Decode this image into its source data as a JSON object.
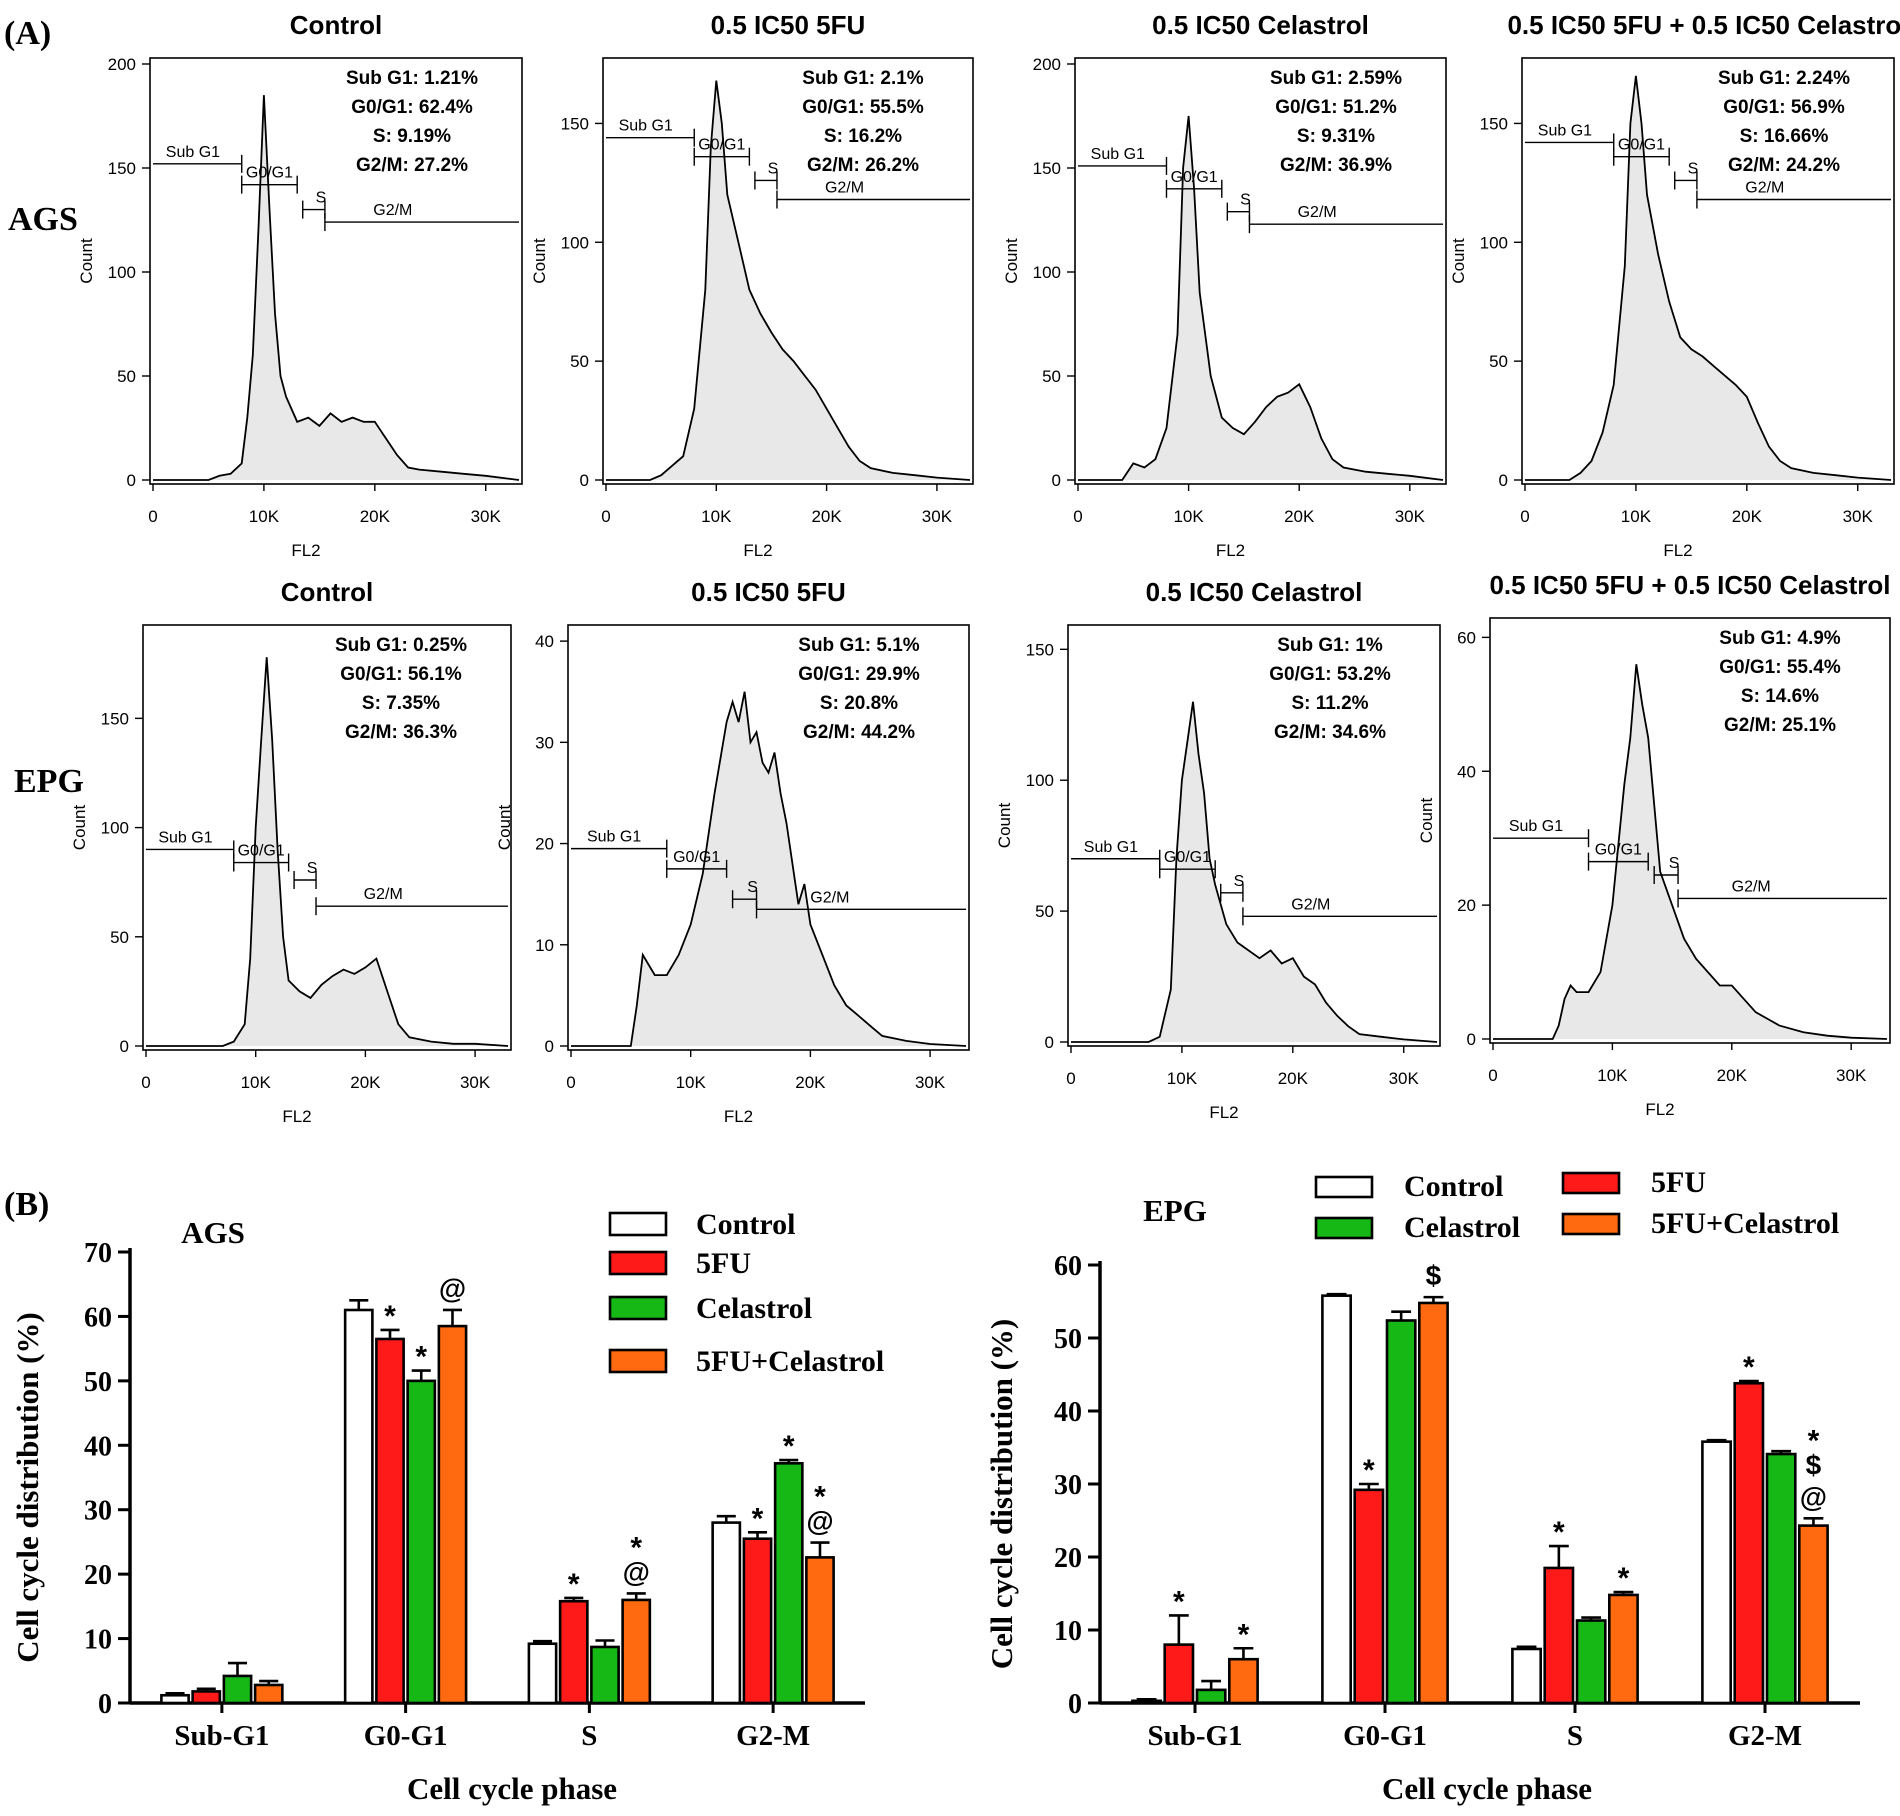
{
  "figure": {
    "panel_a_label": "(A)",
    "panel_b_label": "(B)"
  },
  "histogram_axis": {
    "x_label": "FL2",
    "y_label": "Count",
    "x_ticks": [
      "0",
      "10K",
      "20K",
      "30K"
    ]
  },
  "row_labels": [
    "AGS",
    "EPG"
  ],
  "gate_labels": {
    "sub_g1": "Sub G1",
    "g0g1": "G0/G1",
    "s": "S",
    "g2m": "G2/M"
  },
  "chart_data": [
    {
      "type": "area",
      "id": "ags-control",
      "row": 0,
      "col": 0,
      "title": "Control",
      "stats": [
        "Sub G1: 1.21%",
        "G0/G1: 62.4%",
        "S: 9.19%",
        "G2/M: 27.2%"
      ],
      "ylim": [
        0,
        200
      ],
      "yticks": [
        0,
        50,
        100,
        150,
        200
      ],
      "xlim": [
        0,
        33000
      ],
      "gate_y": [
        152,
        142,
        130,
        124
      ],
      "x": [
        0,
        5000,
        6000,
        7000,
        8000,
        8500,
        9000,
        9500,
        10000,
        10500,
        11000,
        11500,
        12000,
        13000,
        14000,
        15000,
        16000,
        17000,
        18000,
        19000,
        20000,
        21000,
        22000,
        23000,
        24000,
        26000,
        28000,
        30000,
        33000
      ],
      "y": [
        0,
        0,
        2,
        3,
        8,
        30,
        60,
        120,
        185,
        130,
        80,
        50,
        40,
        28,
        30,
        26,
        32,
        28,
        30,
        28,
        28,
        20,
        12,
        6,
        5,
        4,
        3,
        2,
        0
      ]
    },
    {
      "type": "area",
      "id": "ags-5fu",
      "row": 0,
      "col": 1,
      "title": "0.5 IC50 5FU",
      "stats": [
        "Sub G1: 2.1%",
        "G0/G1: 55.5%",
        "S: 16.2%",
        "G2/M: 26.2%"
      ],
      "ylim": [
        0,
        175
      ],
      "yticks": [
        0,
        50,
        100,
        150
      ],
      "xlim": [
        0,
        33000
      ],
      "gate_y": [
        144,
        136,
        126,
        118
      ],
      "x": [
        0,
        4000,
        5000,
        6000,
        7000,
        8000,
        9000,
        9500,
        10000,
        10500,
        11000,
        12000,
        13000,
        14000,
        15000,
        16000,
        17000,
        18000,
        19000,
        20000,
        21000,
        22000,
        23000,
        24000,
        26000,
        28000,
        30000,
        33000
      ],
      "y": [
        0,
        0,
        2,
        6,
        10,
        30,
        80,
        140,
        168,
        150,
        120,
        100,
        80,
        70,
        62,
        55,
        50,
        44,
        38,
        30,
        22,
        14,
        8,
        5,
        3,
        2,
        1,
        0
      ]
    },
    {
      "type": "area",
      "id": "ags-celastrol",
      "row": 0,
      "col": 2,
      "title": "0.5 IC50 Celastrol",
      "stats": [
        "Sub G1: 2.59%",
        "G0/G1: 51.2%",
        "S: 9.31%",
        "G2/M: 36.9%"
      ],
      "ylim": [
        0,
        200
      ],
      "yticks": [
        0,
        50,
        100,
        150,
        200
      ],
      "xlim": [
        0,
        33000
      ],
      "gate_y": [
        151,
        140,
        129,
        123
      ],
      "x": [
        0,
        4000,
        5000,
        6000,
        7000,
        8000,
        9000,
        9500,
        10000,
        10500,
        11000,
        12000,
        13000,
        14000,
        15000,
        16000,
        17000,
        18000,
        19000,
        20000,
        21000,
        22000,
        23000,
        24000,
        26000,
        28000,
        30000,
        33000
      ],
      "y": [
        0,
        0,
        8,
        6,
        10,
        25,
        70,
        150,
        175,
        140,
        90,
        50,
        30,
        25,
        22,
        28,
        35,
        40,
        42,
        46,
        35,
        20,
        10,
        6,
        4,
        3,
        2,
        0
      ]
    },
    {
      "type": "area",
      "id": "ags-combo",
      "row": 0,
      "col": 3,
      "title": "0.5 IC50 5FU + 0.5 IC50 Celastrol",
      "stats": [
        "Sub G1: 2.24%",
        "G0/G1: 56.9%",
        "S: 16.66%",
        "G2/M: 24.2%"
      ],
      "ylim": [
        0,
        175
      ],
      "yticks": [
        0,
        50,
        100,
        150
      ],
      "xlim": [
        0,
        33000
      ],
      "gate_y": [
        142,
        136,
        126,
        118
      ],
      "x": [
        0,
        4000,
        5000,
        6000,
        7000,
        8000,
        9000,
        9500,
        10000,
        10500,
        11000,
        12000,
        13000,
        14000,
        15000,
        16000,
        17000,
        18000,
        19000,
        20000,
        21000,
        22000,
        23000,
        24000,
        26000,
        28000,
        30000,
        33000
      ],
      "y": [
        0,
        0,
        3,
        8,
        20,
        40,
        90,
        150,
        170,
        150,
        120,
        95,
        75,
        60,
        55,
        52,
        48,
        44,
        40,
        35,
        24,
        14,
        8,
        5,
        3,
        2,
        1,
        0
      ]
    },
    {
      "type": "area",
      "id": "epg-control",
      "row": 1,
      "col": 0,
      "title": "Control",
      "stats": [
        "Sub G1: 0.25%",
        "G0/G1: 56.1%",
        "S: 7.35%",
        "G2/M: 36.3%"
      ],
      "ylim": [
        0,
        190
      ],
      "yticks": [
        0,
        50,
        100,
        150
      ],
      "xlim": [
        0,
        33000
      ],
      "gate_y": [
        90,
        84,
        76,
        64
      ],
      "x": [
        0,
        7000,
        8000,
        9000,
        9500,
        10000,
        10500,
        11000,
        11500,
        12000,
        12500,
        13000,
        14000,
        15000,
        16000,
        17000,
        18000,
        19000,
        20000,
        21000,
        22000,
        23000,
        24000,
        26000,
        28000,
        30000,
        33000
      ],
      "y": [
        0,
        0,
        2,
        10,
        40,
        100,
        140,
        178,
        140,
        90,
        50,
        30,
        25,
        22,
        28,
        32,
        35,
        33,
        36,
        40,
        25,
        10,
        4,
        2,
        1,
        1,
        0
      ]
    },
    {
      "type": "area",
      "id": "epg-5fu",
      "row": 1,
      "col": 1,
      "title": "0.5 IC50 5FU",
      "stats": [
        "Sub G1: 5.1%",
        "G0/G1: 29.9%",
        "S: 20.8%",
        "G2/M: 44.2%"
      ],
      "ylim": [
        0,
        41
      ],
      "yticks": [
        0,
        10,
        20,
        30,
        40
      ],
      "xlim": [
        0,
        33000
      ],
      "gate_y": [
        19.5,
        17.5,
        14.5,
        13.5
      ],
      "x": [
        0,
        5000,
        5500,
        6000,
        6500,
        7000,
        8000,
        9000,
        10000,
        11000,
        12000,
        13000,
        13500,
        14000,
        14500,
        15000,
        15500,
        16000,
        16500,
        17000,
        17500,
        18000,
        19000,
        19500,
        20000,
        21000,
        22000,
        23000,
        24000,
        25000,
        26000,
        28000,
        30000,
        33000
      ],
      "y": [
        0,
        0,
        4,
        9,
        8,
        7,
        7,
        9,
        12,
        17,
        25,
        32,
        34,
        32,
        35,
        30,
        31,
        28,
        27,
        29,
        25,
        22,
        14,
        16,
        12,
        9,
        6,
        4,
        3,
        2,
        1,
        0.5,
        0.2,
        0
      ]
    },
    {
      "type": "area",
      "id": "epg-celastrol",
      "row": 1,
      "col": 2,
      "title": "0.5 IC50 Celastrol",
      "stats": [
        "Sub G1: 1%",
        "G0/G1: 53.2%",
        "S: 11.2%",
        "G2/M: 34.6%"
      ],
      "ylim": [
        0,
        157
      ],
      "yticks": [
        0,
        50,
        100,
        150
      ],
      "xlim": [
        0,
        33000
      ],
      "gate_y": [
        70,
        66,
        57,
        48
      ],
      "x": [
        0,
        7000,
        8000,
        9000,
        9500,
        10000,
        10500,
        11000,
        11500,
        12000,
        12500,
        13000,
        14000,
        15000,
        16000,
        17000,
        18000,
        19000,
        20000,
        21000,
        22000,
        23000,
        24000,
        25000,
        26000,
        28000,
        30000,
        33000
      ],
      "y": [
        0,
        0,
        2,
        20,
        70,
        100,
        115,
        130,
        110,
        95,
        70,
        60,
        45,
        38,
        35,
        32,
        35,
        30,
        32,
        25,
        22,
        15,
        10,
        6,
        3,
        2,
        1,
        0
      ]
    },
    {
      "type": "area",
      "id": "epg-combo",
      "row": 1,
      "col": 3,
      "title": "0.5 IC50 5FU + 0.5 IC50 Celastrol",
      "stats": [
        "Sub G1: 4.9%",
        "G0/G1: 55.4%",
        "S: 14.6%",
        "G2/M: 25.1%"
      ],
      "ylim": [
        0,
        62
      ],
      "yticks": [
        0,
        20,
        40,
        60
      ],
      "xlim": [
        0,
        33000
      ],
      "gate_y": [
        30,
        26.5,
        24.5,
        21
      ],
      "x": [
        0,
        5000,
        5500,
        6000,
        6500,
        7000,
        8000,
        9000,
        10000,
        11000,
        11500,
        12000,
        12500,
        13000,
        13500,
        14000,
        15000,
        16000,
        17000,
        18000,
        19000,
        20000,
        21000,
        22000,
        23000,
        24000,
        26000,
        28000,
        30000,
        33000
      ],
      "y": [
        0,
        0,
        2,
        6,
        8,
        7,
        7,
        10,
        20,
        38,
        45,
        56,
        50,
        45,
        35,
        25,
        20,
        15,
        12,
        10,
        8,
        8,
        6,
        4,
        3,
        2,
        1,
        0.5,
        0.2,
        0
      ]
    },
    {
      "type": "bar",
      "id": "ags-bars",
      "title": "AGS",
      "xlabel": "Cell cycle phase",
      "ylabel": "Cell cycle distribution (%)",
      "ylim": [
        0,
        70
      ],
      "yticks": [
        0,
        10,
        20,
        30,
        40,
        50,
        60,
        70
      ],
      "categories": [
        "Sub-G1",
        "G0-G1",
        "S",
        "G2-M"
      ],
      "series": [
        {
          "name": "Control",
          "color": "#ffffff",
          "values": [
            1.2,
            61,
            9.2,
            28
          ],
          "errors": [
            0.3,
            1.5,
            0.4,
            1.0
          ]
        },
        {
          "name": "5FU",
          "color": "#ff1a1a",
          "values": [
            1.8,
            56.5,
            15.8,
            25.5
          ],
          "errors": [
            0.4,
            1.4,
            0.5,
            1.0
          ]
        },
        {
          "name": "Celastrol",
          "color": "#16b816",
          "values": [
            4.2,
            50,
            8.7,
            37.2
          ],
          "errors": [
            2.0,
            1.6,
            1.0,
            0.5
          ]
        },
        {
          "name": "5FU+Celastrol",
          "color": "#ff6a10",
          "values": [
            2.8,
            58.5,
            16,
            22.6
          ],
          "errors": [
            0.6,
            2.5,
            1.0,
            2.3
          ]
        }
      ],
      "annotations": [
        {
          "category": 1,
          "series": 1,
          "text": "*"
        },
        {
          "category": 1,
          "series": 2,
          "text": "*"
        },
        {
          "category": 1,
          "series": 3,
          "text": "@"
        },
        {
          "category": 2,
          "series": 1,
          "text": "*"
        },
        {
          "category": 2,
          "series": 3,
          "text": "*"
        },
        {
          "category": 2,
          "series": 3,
          "text": "@"
        },
        {
          "category": 3,
          "series": 1,
          "text": "*"
        },
        {
          "category": 3,
          "series": 2,
          "text": "*"
        },
        {
          "category": 3,
          "series": 3,
          "text": "*"
        },
        {
          "category": 3,
          "series": 3,
          "text": "@"
        }
      ],
      "legend": [
        "Control",
        "5FU",
        "Celastrol",
        "5FU+Celastrol"
      ]
    },
    {
      "type": "bar",
      "id": "epg-bars",
      "title": "EPG",
      "xlabel": "Cell cycle phase",
      "ylabel": "Cell cycle distribution (%)",
      "ylim": [
        0,
        60
      ],
      "yticks": [
        0,
        10,
        20,
        30,
        40,
        50,
        60
      ],
      "categories": [
        "Sub-G1",
        "G0-G1",
        "S",
        "G2-M"
      ],
      "series": [
        {
          "name": "Control",
          "color": "#ffffff",
          "values": [
            0.3,
            55.8,
            7.4,
            35.8
          ],
          "errors": [
            0.2,
            0.2,
            0.3,
            0.2
          ]
        },
        {
          "name": "5FU",
          "color": "#ff1a1a",
          "values": [
            8,
            29.2,
            18.5,
            43.8
          ],
          "errors": [
            4.0,
            0.8,
            3.0,
            0.3
          ]
        },
        {
          "name": "Celastrol",
          "color": "#16b816",
          "values": [
            1.8,
            52.4,
            11.3,
            34.1
          ],
          "errors": [
            1.2,
            1.2,
            0.4,
            0.4
          ]
        },
        {
          "name": "5FU+Celastrol",
          "color": "#ff6a10",
          "values": [
            6,
            54.8,
            14.8,
            24.3
          ],
          "errors": [
            1.5,
            0.8,
            0.4,
            1.0
          ]
        }
      ],
      "annotations": [
        {
          "category": 0,
          "series": 1,
          "text": "*"
        },
        {
          "category": 0,
          "series": 3,
          "text": "*"
        },
        {
          "category": 1,
          "series": 1,
          "text": "*"
        },
        {
          "category": 1,
          "series": 3,
          "text": "$"
        },
        {
          "category": 2,
          "series": 1,
          "text": "*"
        },
        {
          "category": 2,
          "series": 3,
          "text": "*"
        },
        {
          "category": 3,
          "series": 1,
          "text": "*"
        },
        {
          "category": 3,
          "series": 3,
          "text": "*"
        },
        {
          "category": 3,
          "series": 3,
          "text": "$"
        },
        {
          "category": 3,
          "series": 3,
          "text": "@"
        }
      ],
      "legend": [
        "Control",
        "5FU",
        "Celastrol",
        "5FU+Celastrol"
      ]
    }
  ]
}
